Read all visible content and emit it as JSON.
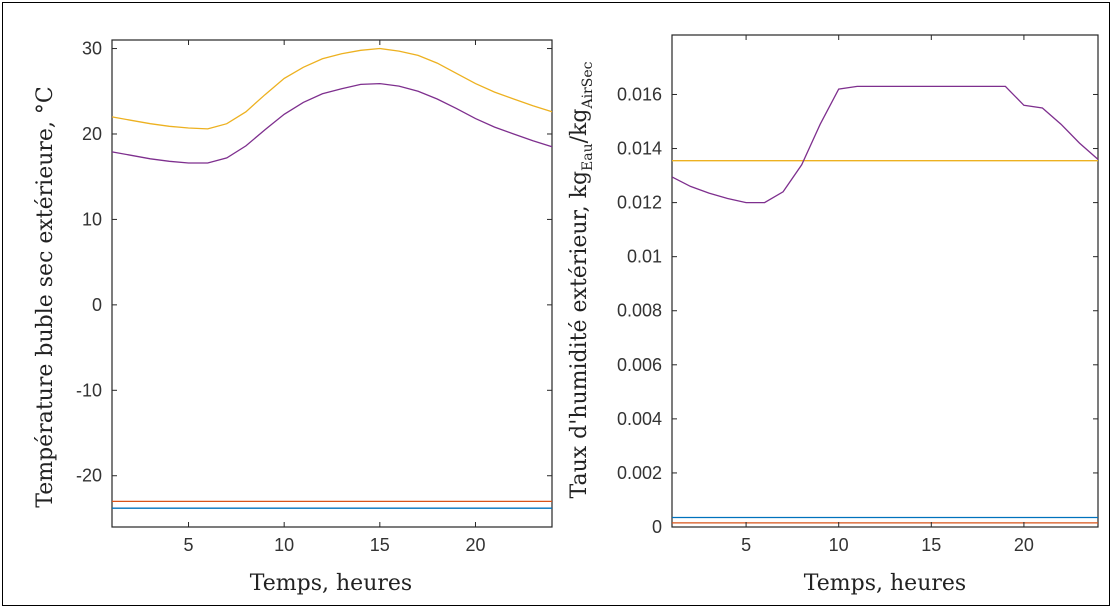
{
  "chart_data": [
    {
      "type": "line",
      "xlabel": "Temps, heures",
      "ylabel": "Température buble sec extérieure, °C",
      "xlim": [
        1,
        24
      ],
      "ylim": [
        -26,
        31
      ],
      "xticks": [
        5,
        10,
        15,
        20
      ],
      "yticks": [
        -20,
        -10,
        0,
        10,
        20,
        30
      ],
      "grid": false,
      "series": [
        {
          "color": "#EDB120",
          "x": [
            1,
            2,
            3,
            4,
            5,
            6,
            7,
            8,
            9,
            10,
            11,
            12,
            13,
            14,
            15,
            16,
            17,
            18,
            19,
            20,
            21,
            22,
            23,
            24
          ],
          "y": [
            22.0,
            21.6,
            21.2,
            20.9,
            20.7,
            20.6,
            21.2,
            22.6,
            24.6,
            26.5,
            27.8,
            28.8,
            29.4,
            29.8,
            30.0,
            29.7,
            29.2,
            28.3,
            27.1,
            25.9,
            24.9,
            24.1,
            23.3,
            22.6
          ]
        },
        {
          "color": "#7E2F8E",
          "x": [
            1,
            2,
            3,
            4,
            5,
            6,
            7,
            8,
            9,
            10,
            11,
            12,
            13,
            14,
            15,
            16,
            17,
            18,
            19,
            20,
            21,
            22,
            23,
            24
          ],
          "y": [
            17.9,
            17.5,
            17.1,
            16.8,
            16.6,
            16.6,
            17.2,
            18.6,
            20.5,
            22.3,
            23.7,
            24.7,
            25.3,
            25.8,
            25.9,
            25.6,
            25.0,
            24.1,
            23.0,
            21.8,
            20.8,
            20.0,
            19.2,
            18.5
          ]
        },
        {
          "color": "#D95319",
          "x": [
            1,
            24
          ],
          "y": [
            -23.0,
            -23.0
          ]
        },
        {
          "color": "#0072BD",
          "x": [
            1,
            24
          ],
          "y": [
            -23.8,
            -23.8
          ]
        }
      ]
    },
    {
      "type": "line",
      "xlabel": "Temps, heures",
      "ylabel_main": "Taux d'humidité extérieur, kg",
      "ylabel_sub1": "Eau",
      "ylabel_mid": "/kg",
      "ylabel_sub2": "AirSec",
      "xlim": [
        1,
        24
      ],
      "ylim": [
        0,
        0.0182
      ],
      "xticks": [
        5,
        10,
        15,
        20
      ],
      "yticks": [
        0,
        0.002,
        0.004,
        0.006,
        0.008,
        0.01,
        0.012,
        0.014,
        0.016
      ],
      "ytick_labels": [
        "0",
        "0.002",
        "0.004",
        "0.006",
        "0.008",
        "0.01",
        "0.012",
        "0.014",
        "0.016"
      ],
      "grid": false,
      "series": [
        {
          "color": "#EDB120",
          "x": [
            1,
            24
          ],
          "y": [
            0.01355,
            0.01355
          ]
        },
        {
          "color": "#7E2F8E",
          "x": [
            1,
            2,
            3,
            4,
            5,
            6,
            7,
            8,
            9,
            10,
            11,
            12,
            13,
            14,
            15,
            16,
            17,
            18,
            19,
            20,
            21,
            22,
            23,
            24
          ],
          "y": [
            0.01295,
            0.0126,
            0.01235,
            0.01215,
            0.012,
            0.012,
            0.0124,
            0.0134,
            0.0149,
            0.0162,
            0.0163,
            0.0163,
            0.0163,
            0.0163,
            0.0163,
            0.0163,
            0.0163,
            0.0163,
            0.0163,
            0.0156,
            0.0155,
            0.0149,
            0.0142,
            0.0136
          ]
        },
        {
          "color": "#0072BD",
          "x": [
            1,
            24
          ],
          "y": [
            0.00035,
            0.00035
          ]
        },
        {
          "color": "#D95319",
          "x": [
            1,
            24
          ],
          "y": [
            0.00015,
            0.00015
          ]
        }
      ]
    }
  ]
}
